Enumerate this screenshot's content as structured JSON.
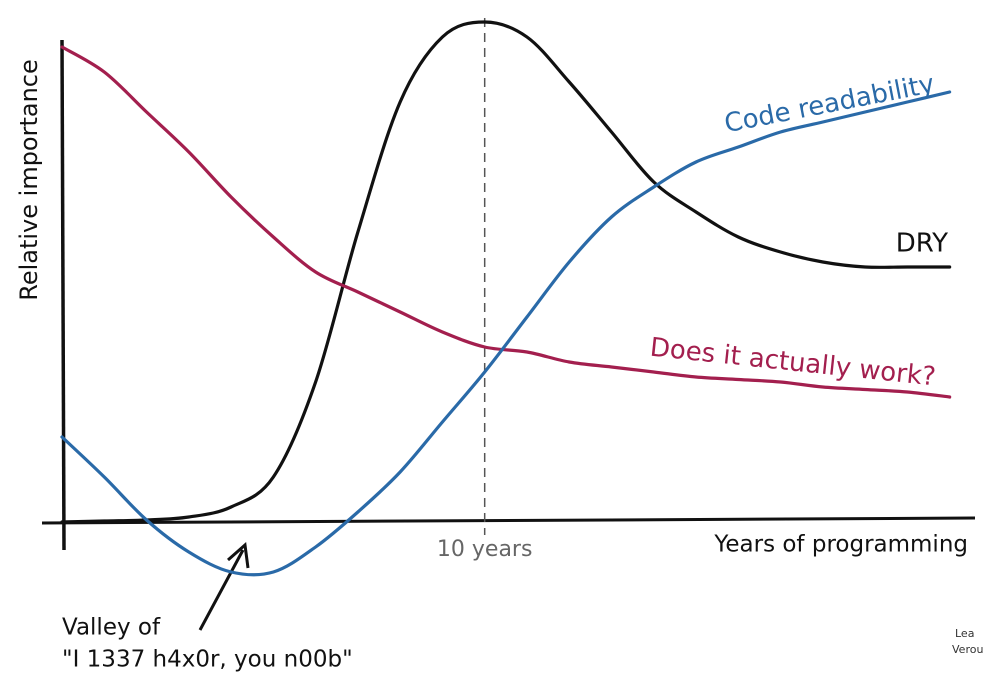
{
  "chart_data": {
    "type": "line",
    "x_label": "Years of programming",
    "y_label": "Relative importance",
    "x": [
      0,
      1,
      2,
      3,
      4,
      5,
      6,
      7,
      8,
      9,
      10,
      11,
      12,
      13,
      14,
      15,
      16,
      17,
      18,
      19,
      20,
      21
    ],
    "series": [
      {
        "name": "DRY",
        "color": "#111111",
        "values": [
          0,
          0.2,
          0.4,
          1,
          3,
          9,
          28,
          58,
          84,
          97,
          100,
          97,
          88,
          78,
          68,
          62,
          57,
          54,
          52,
          51,
          51,
          51
        ]
      },
      {
        "name": "Does it actually work?",
        "color": "#a31f4e",
        "values": [
          95,
          90,
          82,
          74,
          65,
          57,
          50,
          46,
          42,
          38,
          35,
          34,
          32,
          31,
          30,
          29,
          28.5,
          28,
          27,
          26.5,
          26,
          25
        ]
      },
      {
        "name": "Code readability",
        "color": "#2a6aa8",
        "values": [
          17,
          9,
          0.4,
          -6,
          -10,
          -10,
          -5,
          2,
          10,
          20,
          30,
          41,
          52,
          61,
          67,
          72,
          75,
          78,
          80,
          82,
          84,
          86
        ]
      }
    ],
    "xlim": [
      0,
      21.6
    ],
    "ylim": [
      -12,
      100
    ],
    "xticks": [
      {
        "value": 10,
        "label": "10 years"
      }
    ],
    "annotation": [
      "Valley of",
      "\"I 1337 h4x0r, you n00b\""
    ],
    "signature": [
      "Lea",
      "Verou"
    ]
  }
}
